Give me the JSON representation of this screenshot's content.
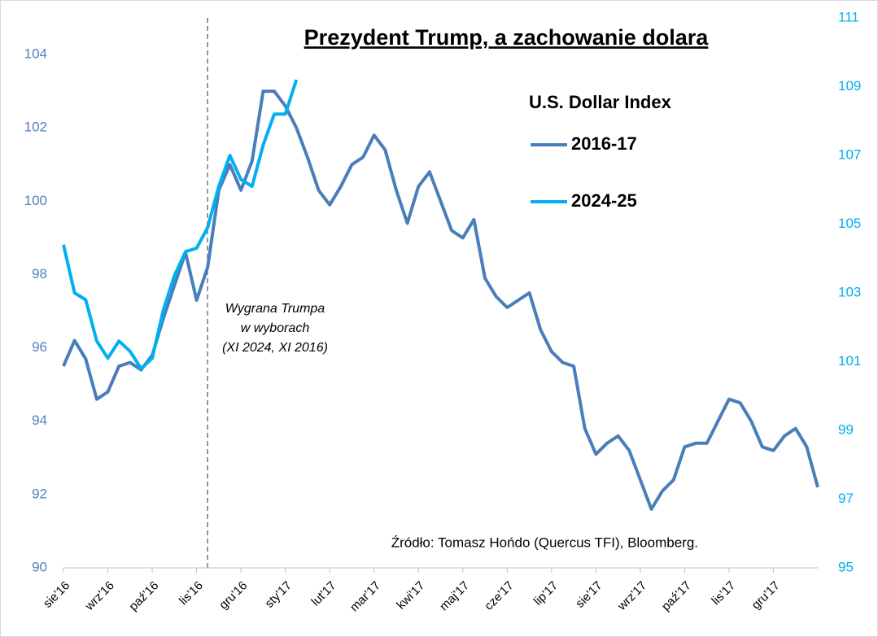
{
  "chart_data": {
    "type": "line",
    "title": "Prezydent Trump, a zachowanie dolara",
    "legend_title": "U.S. Dollar Index",
    "annotation": [
      "Wygrana Trumpa",
      "w wyborach",
      "(XI 2024, XI 2016)"
    ],
    "source": "Źródło: Tomasz Hońdo (Quercus TFI), Bloomberg.",
    "categories": [
      "sie'16",
      null,
      null,
      null,
      "wrz'16",
      null,
      null,
      null,
      "paź'16",
      null,
      null,
      null,
      "lis'16",
      null,
      null,
      null,
      "gru'16",
      null,
      null,
      null,
      "sty'17",
      null,
      null,
      null,
      "lut'17",
      null,
      null,
      null,
      "mar'17",
      null,
      null,
      null,
      "kwi'17",
      null,
      null,
      null,
      "maj'17",
      null,
      null,
      null,
      "cze'17",
      null,
      null,
      null,
      "lip'17",
      null,
      null,
      null,
      "sie'17",
      null,
      null,
      null,
      "wrz'17",
      null,
      null,
      null,
      "paź'17",
      null,
      null,
      null,
      "lis'17",
      null,
      null,
      null,
      "gru'17",
      null,
      null,
      null,
      null
    ],
    "series": [
      {
        "name": "2016-17",
        "color": "#4a7ebb",
        "axis": "y",
        "values": [
          95.5,
          96.2,
          95.7,
          94.6,
          94.8,
          95.5,
          95.6,
          95.4,
          95.8,
          96.8,
          97.7,
          98.6,
          97.3,
          98.2,
          100.3,
          101.0,
          100.3,
          101.1,
          103.0,
          103.0,
          102.6,
          102.0,
          101.2,
          100.3,
          99.9,
          100.4,
          101.0,
          101.2,
          101.8,
          101.4,
          100.3,
          99.4,
          100.4,
          100.8,
          100.0,
          99.2,
          99.0,
          99.5,
          97.9,
          97.4,
          97.1,
          97.3,
          97.5,
          96.5,
          95.9,
          95.6,
          95.5,
          93.8,
          93.1,
          93.4,
          93.6,
          93.2,
          92.4,
          91.6,
          92.1,
          92.4,
          93.3,
          93.4,
          93.4,
          94.0,
          94.6,
          94.5,
          94.0,
          93.3,
          93.2,
          93.6,
          93.8,
          93.3,
          92.2
        ]
      },
      {
        "name": "2024-25",
        "color": "#00b0f0",
        "axis": "y2",
        "values": [
          104.4,
          103.0,
          102.8,
          101.6,
          101.1,
          101.6,
          101.3,
          100.8,
          101.1,
          102.5,
          103.5,
          104.2,
          104.3,
          104.9,
          106.1,
          107.0,
          106.3,
          106.1,
          107.3,
          108.2,
          108.2,
          109.2,
          null,
          null,
          null,
          null,
          null,
          null,
          null,
          null,
          null,
          null,
          null,
          null,
          null,
          null,
          null,
          null,
          null,
          null,
          null,
          null,
          null,
          null,
          null,
          null,
          null,
          null,
          null,
          null,
          null,
          null,
          null,
          null,
          null,
          null,
          null,
          null,
          null,
          null,
          null,
          null,
          null,
          null,
          null,
          null,
          null,
          null,
          null
        ]
      }
    ],
    "ylim": [
      90,
      105
    ],
    "yticks": [
      90,
      92,
      94,
      96,
      98,
      100,
      102,
      104
    ],
    "y2lim": [
      95,
      111
    ],
    "y2ticks": [
      95,
      97,
      99,
      101,
      103,
      105,
      107,
      109,
      111
    ]
  }
}
